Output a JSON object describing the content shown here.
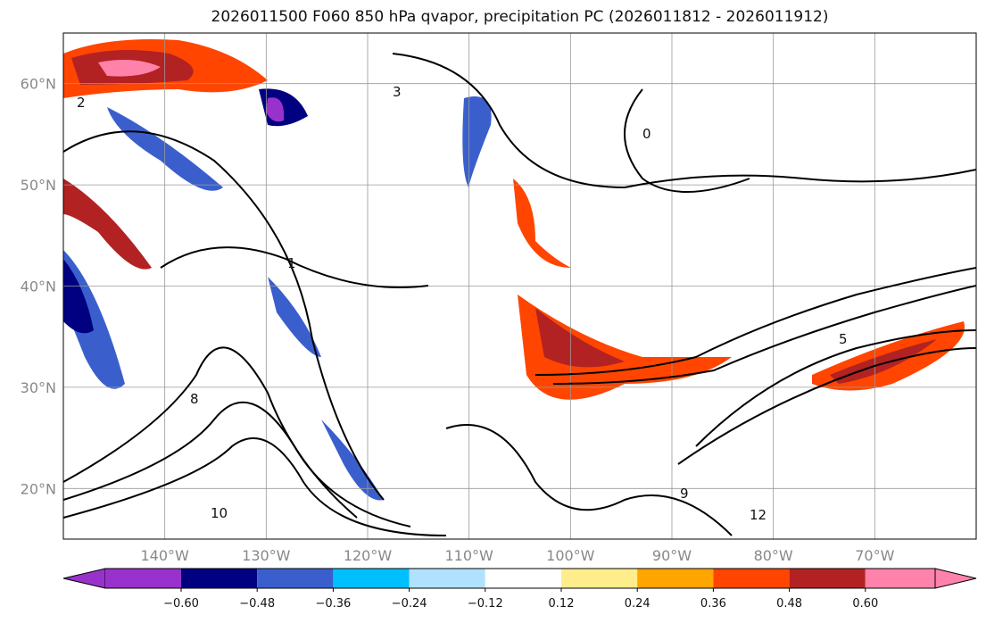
{
  "title": "2026011500 F060 850 hPa qvapor, precipitation PC (2026011812 - 2026011912)",
  "map": {
    "extent": {
      "lon": [
        -150,
        -60
      ],
      "lat": [
        15,
        65
      ]
    },
    "lat_labels": [
      {
        "lat": 60,
        "label": "60°N"
      },
      {
        "lat": 50,
        "label": "50°N"
      },
      {
        "lat": 40,
        "label": "40°N"
      },
      {
        "lat": 30,
        "label": "30°N"
      },
      {
        "lat": 20,
        "label": "20°N"
      }
    ],
    "lon_labels": [
      {
        "lon": -140,
        "label": "140°W"
      },
      {
        "lon": -130,
        "label": "130°W"
      },
      {
        "lon": -120,
        "label": "120°W"
      },
      {
        "lon": -110,
        "label": "110°W"
      },
      {
        "lon": -100,
        "label": "100°W"
      },
      {
        "lon": -90,
        "label": "90°W"
      },
      {
        "lon": -80,
        "label": "80°W"
      },
      {
        "lon": -70,
        "label": "70°W"
      }
    ],
    "contour_labels": [
      "0",
      "1",
      "2",
      "3",
      "5",
      "8",
      "9",
      "10",
      "12"
    ]
  },
  "colorbar": {
    "levels": [
      "−0.60",
      "−0.48",
      "−0.36",
      "−0.24",
      "−0.12",
      "0.12",
      "0.24",
      "0.36",
      "0.48",
      "0.60"
    ],
    "colors": [
      "#9932cc",
      "#000080",
      "#3a5fcd",
      "#00bfff",
      "#b0e2ff",
      "#ffffff",
      "#ffec8b",
      "#ffa500",
      "#ff4500",
      "#b22222",
      "#ff82ab"
    ]
  }
}
